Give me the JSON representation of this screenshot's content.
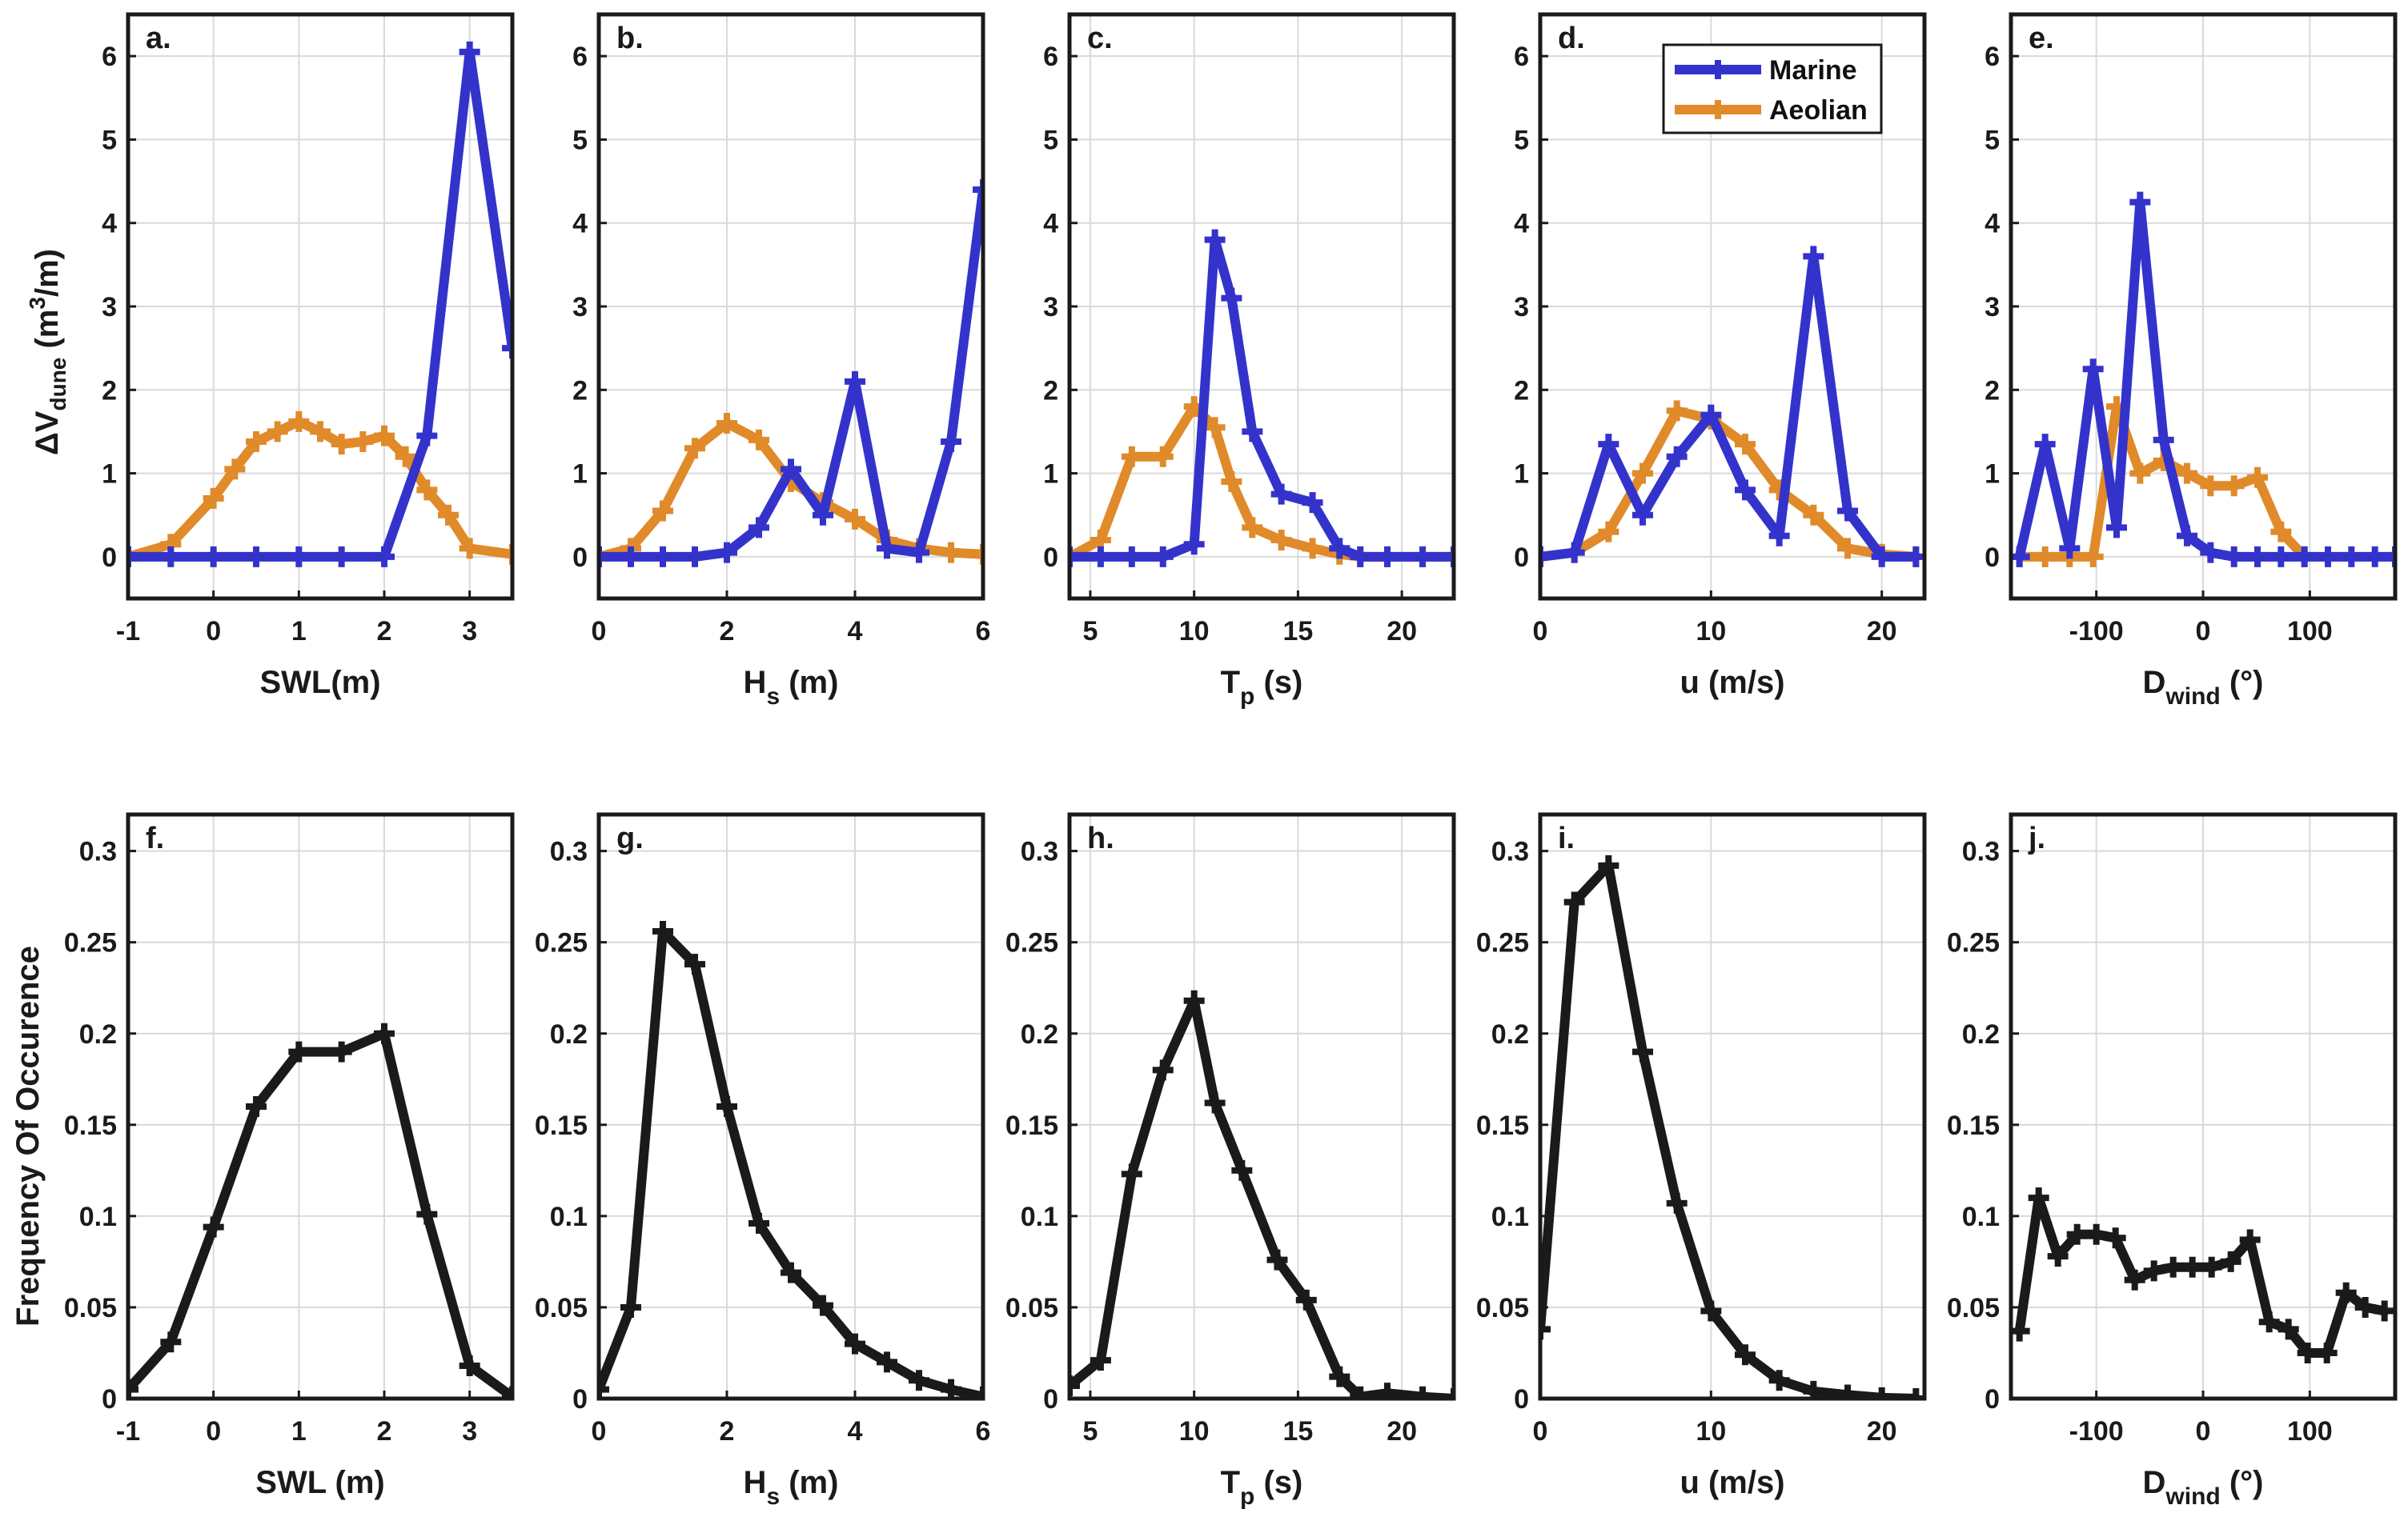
{
  "colors": {
    "marine": "#3333cc",
    "aeolian": "#e08a2a",
    "freq": "#1a1a1a"
  },
  "y_axis_labels": {
    "top_main": "ΔV",
    "top_sub": "dune",
    "top_unit_open": " (m",
    "top_unit_sup": "3",
    "top_unit_close": "/m)",
    "bottom": "Frequency Of Occurence"
  },
  "legend": {
    "marine": "Marine",
    "aeolian": "Aeolian"
  },
  "chart_data": [
    {
      "id": "a",
      "type": "line",
      "panel_label": "a.",
      "xlabel_main": "SWL(m)",
      "xlabel_sub": "",
      "xlabel_tail": "",
      "xlim": [
        -1,
        3.5
      ],
      "ylim": [
        -0.5,
        6.5
      ],
      "xticks": [
        -1,
        0,
        1,
        2,
        3
      ],
      "xtick_labels": [
        "-1",
        "0",
        "1",
        "2",
        "3"
      ],
      "yticks": [
        0,
        1,
        2,
        3,
        4,
        5,
        6
      ],
      "ytick_labels": [
        "0",
        "1",
        "2",
        "3",
        "4",
        "5",
        "6"
      ],
      "series": [
        {
          "name": "Marine",
          "x": [
            -1,
            -0.5,
            0,
            0.5,
            1,
            1.5,
            2,
            2.5,
            3,
            3.5
          ],
          "values": [
            0,
            0,
            0,
            0,
            0,
            0,
            0,
            1.45,
            6.05,
            2.5
          ]
        },
        {
          "name": "Aeolian",
          "x": [
            -1,
            -0.5,
            0,
            0.25,
            0.5,
            0.75,
            1,
            1.25,
            1.5,
            1.75,
            2,
            2.25,
            2.5,
            2.75,
            3,
            3.5
          ],
          "values": [
            0,
            0.15,
            0.7,
            1.05,
            1.38,
            1.5,
            1.62,
            1.5,
            1.35,
            1.38,
            1.45,
            1.2,
            0.8,
            0.5,
            0.1,
            0.03
          ]
        }
      ]
    },
    {
      "id": "b",
      "type": "line",
      "panel_label": "b.",
      "xlabel_main": "H",
      "xlabel_sub": "s",
      "xlabel_tail": " (m)",
      "xlim": [
        0,
        6
      ],
      "ylim": [
        -0.5,
        6.5
      ],
      "xticks": [
        0,
        2,
        4,
        6
      ],
      "xtick_labels": [
        "0",
        "2",
        "4",
        "6"
      ],
      "yticks": [
        0,
        1,
        2,
        3,
        4,
        5,
        6
      ],
      "ytick_labels": [
        "0",
        "1",
        "2",
        "3",
        "4",
        "5",
        "6"
      ],
      "series": [
        {
          "name": "Marine",
          "x": [
            0,
            0.5,
            1,
            1.5,
            2,
            2.5,
            3,
            3.5,
            4,
            4.5,
            5,
            5.5,
            6
          ],
          "values": [
            0,
            0,
            0,
            0,
            0.05,
            0.35,
            1.05,
            0.5,
            2.1,
            0.1,
            0.05,
            1.38,
            4.4
          ]
        },
        {
          "name": "Aeolian",
          "x": [
            0,
            0.5,
            1,
            1.5,
            2,
            2.5,
            3,
            3.5,
            4,
            4.5,
            5,
            5.5,
            6
          ],
          "values": [
            0,
            0.1,
            0.55,
            1.3,
            1.6,
            1.4,
            0.9,
            0.65,
            0.45,
            0.2,
            0.1,
            0.05,
            0.03
          ]
        }
      ]
    },
    {
      "id": "c",
      "type": "line",
      "panel_label": "c.",
      "xlabel_main": "T",
      "xlabel_sub": "p",
      "xlabel_tail": " (s)",
      "xlim": [
        4,
        22.5
      ],
      "ylim": [
        -0.5,
        6.5
      ],
      "xticks": [
        5,
        10,
        15,
        20
      ],
      "xtick_labels": [
        "5",
        "10",
        "15",
        "20"
      ],
      "yticks": [
        0,
        1,
        2,
        3,
        4,
        5,
        6
      ],
      "ytick_labels": [
        "0",
        "1",
        "2",
        "3",
        "4",
        "5",
        "6"
      ],
      "series": [
        {
          "name": "Marine",
          "x": [
            4,
            5.5,
            7,
            8.5,
            10,
            11,
            11.8,
            12.8,
            14.2,
            15.7,
            17,
            18,
            19.3,
            21,
            22.5
          ],
          "values": [
            0,
            0,
            0,
            0,
            0.15,
            3.8,
            3.1,
            1.5,
            0.75,
            0.65,
            0.1,
            0.0,
            0,
            0,
            0
          ]
        },
        {
          "name": "Aeolian",
          "x": [
            4,
            5.5,
            7,
            8.5,
            10,
            11,
            11.8,
            12.8,
            14.2,
            15.7,
            17,
            18,
            19.3,
            21,
            22.5
          ],
          "values": [
            0,
            0.2,
            1.2,
            1.2,
            1.8,
            1.55,
            0.9,
            0.35,
            0.2,
            0.1,
            0.03,
            0.0,
            0,
            0,
            0
          ]
        }
      ]
    },
    {
      "id": "d",
      "type": "line",
      "panel_label": "d.",
      "xlabel_main": "u (m/s)",
      "xlabel_sub": "",
      "xlabel_tail": "",
      "xlim": [
        0,
        22.5
      ],
      "ylim": [
        -0.5,
        6.5
      ],
      "xticks": [
        0,
        10,
        20
      ],
      "xtick_labels": [
        "0",
        "10",
        "20"
      ],
      "yticks": [
        0,
        1,
        2,
        3,
        4,
        5,
        6
      ],
      "ytick_labels": [
        "0",
        "1",
        "2",
        "3",
        "4",
        "5",
        "6"
      ],
      "series": [
        {
          "name": "Marine",
          "x": [
            0,
            2,
            4,
            6,
            8,
            10,
            12,
            14,
            16,
            18,
            20,
            22
          ],
          "values": [
            0,
            0.05,
            1.35,
            0.5,
            1.2,
            1.7,
            0.8,
            0.25,
            3.6,
            0.55,
            0,
            0
          ]
        },
        {
          "name": "Aeolian",
          "x": [
            0,
            2,
            4,
            6,
            8,
            10,
            12,
            14,
            16,
            18,
            20,
            22
          ],
          "values": [
            0,
            0.05,
            0.3,
            1.0,
            1.75,
            1.65,
            1.35,
            0.8,
            0.5,
            0.1,
            0.03,
            0
          ]
        }
      ]
    },
    {
      "id": "e",
      "type": "line",
      "panel_label": "e.",
      "xlabel_main": "D",
      "xlabel_sub": "wind",
      "xlabel_tail": " (°)",
      "xlim": [
        -180,
        180
      ],
      "ylim": [
        -0.5,
        6.5
      ],
      "xticks": [
        -100,
        0,
        100
      ],
      "xtick_labels": [
        "-100",
        "0",
        "100"
      ],
      "yticks": [
        0,
        1,
        2,
        3,
        4,
        5,
        6
      ],
      "ytick_labels": [
        "0",
        "1",
        "2",
        "3",
        "4",
        "5",
        "6"
      ],
      "series": [
        {
          "name": "Marine",
          "x": [
            -172,
            -148,
            -125,
            -103,
            -81,
            -59,
            -37,
            -15,
            7,
            29,
            51,
            73,
            95,
            117,
            139,
            161,
            180
          ],
          "values": [
            0,
            1.35,
            0.1,
            2.25,
            0.35,
            4.25,
            1.4,
            0.25,
            0.05,
            0,
            0,
            0,
            0,
            0,
            0,
            0,
            0
          ]
        },
        {
          "name": "Aeolian",
          "x": [
            -172,
            -148,
            -125,
            -103,
            -81,
            -59,
            -37,
            -15,
            7,
            29,
            51,
            73,
            95
          ],
          "values": [
            0,
            0,
            0,
            0,
            1.8,
            1.0,
            1.15,
            1.0,
            0.85,
            0.85,
            0.95,
            0.3,
            0
          ]
        }
      ]
    },
    {
      "id": "f",
      "type": "line",
      "panel_label": "f.",
      "xlabel_main": "SWL (m)",
      "xlabel_sub": "",
      "xlabel_tail": "",
      "xlim": [
        -1,
        3.5
      ],
      "ylim": [
        0,
        0.32
      ],
      "xticks": [
        -1,
        0,
        1,
        2,
        3
      ],
      "xtick_labels": [
        "-1",
        "0",
        "1",
        "2",
        "3"
      ],
      "yticks": [
        0,
        0.05,
        0.1,
        0.15,
        0.2,
        0.25,
        0.3
      ],
      "ytick_labels": [
        "0",
        "0.05",
        "0.1",
        "0.15",
        "0.2",
        "0.25",
        "0.3"
      ],
      "series": [
        {
          "name": "Frequency",
          "x": [
            -1,
            -0.5,
            0,
            0.5,
            1,
            1.5,
            2,
            2.5,
            3,
            3.5
          ],
          "values": [
            0.005,
            0.031,
            0.094,
            0.16,
            0.19,
            0.19,
            0.2,
            0.101,
            0.018,
            0.001
          ]
        }
      ]
    },
    {
      "id": "g",
      "type": "line",
      "panel_label": "g.",
      "xlabel_main": "H",
      "xlabel_sub": "s",
      "xlabel_tail": " (m)",
      "xlim": [
        0,
        6
      ],
      "ylim": [
        0,
        0.32
      ],
      "xticks": [
        0,
        2,
        4,
        6
      ],
      "xtick_labels": [
        "0",
        "2",
        "4",
        "6"
      ],
      "yticks": [
        0,
        0.05,
        0.1,
        0.15,
        0.2,
        0.25,
        0.3
      ],
      "ytick_labels": [
        "0",
        "0.05",
        "0.1",
        "0.15",
        "0.2",
        "0.25",
        "0.3"
      ],
      "series": [
        {
          "name": "Frequency",
          "x": [
            0,
            0.5,
            1,
            1.5,
            2,
            2.5,
            3,
            3.5,
            4,
            4.5,
            5,
            5.5,
            6
          ],
          "values": [
            0.005,
            0.05,
            0.256,
            0.238,
            0.16,
            0.096,
            0.069,
            0.051,
            0.03,
            0.02,
            0.01,
            0.005,
            0.001
          ]
        }
      ]
    },
    {
      "id": "h",
      "type": "line",
      "panel_label": "h.",
      "xlabel_main": "T",
      "xlabel_sub": "p",
      "xlabel_tail": " (s)",
      "xlim": [
        4,
        22.5
      ],
      "ylim": [
        0,
        0.32
      ],
      "xticks": [
        5,
        10,
        15,
        20
      ],
      "xtick_labels": [
        "5",
        "10",
        "15",
        "20"
      ],
      "yticks": [
        0,
        0.05,
        0.1,
        0.15,
        0.2,
        0.25,
        0.3
      ],
      "ytick_labels": [
        "0",
        "0.05",
        "0.1",
        "0.15",
        "0.2",
        "0.25",
        "0.3"
      ],
      "series": [
        {
          "name": "Frequency",
          "x": [
            4,
            5.5,
            7,
            8.5,
            10,
            11,
            12.3,
            14,
            15.4,
            17,
            18,
            19.3,
            21,
            22.5
          ],
          "values": [
            0.007,
            0.021,
            0.123,
            0.18,
            0.218,
            0.162,
            0.125,
            0.076,
            0.054,
            0.012,
            0.001,
            0.003,
            0.001,
            0.0
          ]
        }
      ]
    },
    {
      "id": "i",
      "type": "line",
      "panel_label": "i.",
      "xlabel_main": "u (m/s)",
      "xlabel_sub": "",
      "xlabel_tail": "",
      "xlim": [
        0,
        22.5
      ],
      "ylim": [
        0,
        0.32
      ],
      "xticks": [
        0,
        10,
        20
      ],
      "xtick_labels": [
        "0",
        "10",
        "20"
      ],
      "yticks": [
        0,
        0.05,
        0.1,
        0.15,
        0.2,
        0.25,
        0.3
      ],
      "ytick_labels": [
        "0",
        "0.05",
        "0.1",
        "0.15",
        "0.2",
        "0.25",
        "0.3"
      ],
      "series": [
        {
          "name": "Frequency",
          "x": [
            0,
            2,
            4,
            6,
            8,
            10,
            12,
            14,
            16,
            18,
            20,
            22
          ],
          "values": [
            0.038,
            0.272,
            0.292,
            0.19,
            0.107,
            0.048,
            0.024,
            0.01,
            0.004,
            0.002,
            0.0005,
            0.0
          ]
        }
      ]
    },
    {
      "id": "j",
      "type": "line",
      "panel_label": "j.",
      "xlabel_main": "D",
      "xlabel_sub": "wind",
      "xlabel_tail": " (°)",
      "xlim": [
        -180,
        180
      ],
      "ylim": [
        0,
        0.32
      ],
      "xticks": [
        -100,
        0,
        100
      ],
      "xtick_labels": [
        "-100",
        "0",
        "100"
      ],
      "yticks": [
        0,
        0.05,
        0.1,
        0.15,
        0.2,
        0.25,
        0.3
      ],
      "ytick_labels": [
        "0",
        "0.05",
        "0.1",
        "0.15",
        "0.2",
        "0.25",
        "0.3"
      ],
      "series": [
        {
          "name": "Frequency",
          "x": [
            -172,
            -154,
            -136,
            -118,
            -100,
            -82,
            -64,
            -46,
            -28,
            -10,
            8,
            26,
            44,
            62,
            80,
            98,
            116,
            134,
            152,
            170
          ],
          "values": [
            0.037,
            0.11,
            0.078,
            0.09,
            0.09,
            0.088,
            0.065,
            0.07,
            0.072,
            0.072,
            0.072,
            0.075,
            0.087,
            0.042,
            0.038,
            0.025,
            0.025,
            0.058,
            0.05,
            0.048
          ]
        }
      ]
    }
  ]
}
